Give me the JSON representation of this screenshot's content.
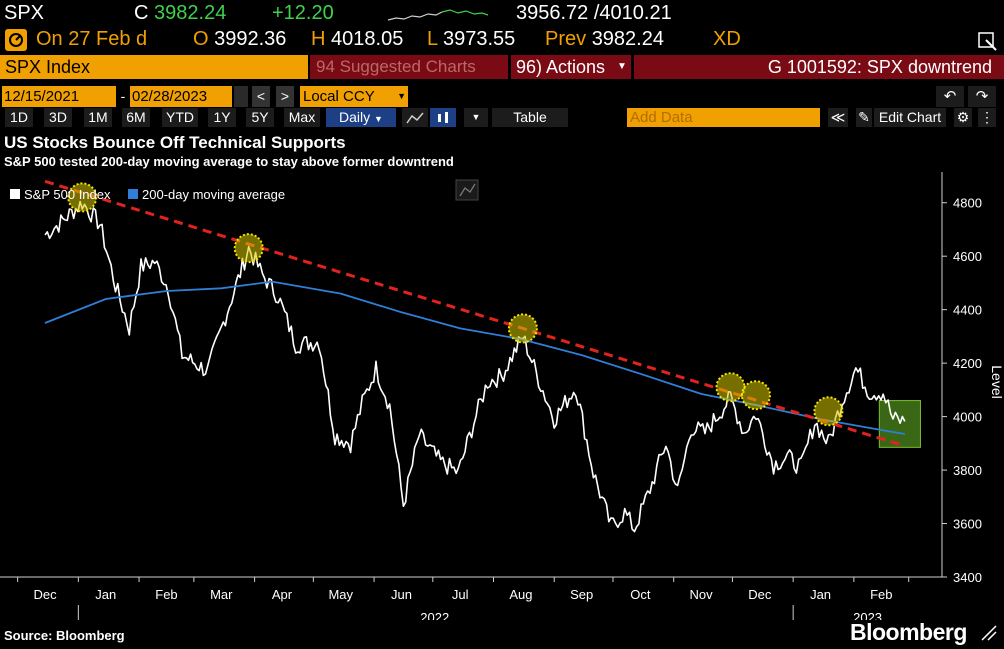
{
  "quote": {
    "ticker": "SPX",
    "close_prefix": "C",
    "close": "3982.24",
    "change": "+12.20",
    "range": "3956.72 /4010.21",
    "date_label": "On 27 Feb d",
    "open_prefix": "O",
    "open": "3992.36",
    "high_prefix": "H",
    "high": "4018.05",
    "low_prefix": "L",
    "low": "3973.55",
    "prev_label": "Prev",
    "prev": "3982.24",
    "xd": "XD"
  },
  "toolbar": {
    "security": "SPX Index",
    "suggested": "94 Suggested Charts",
    "actions": "96) Actions",
    "chart_id": "G 1001592: SPX downtrend",
    "start_date": "12/15/2021",
    "end_date": "02/28/2023",
    "currency": "Local CCY",
    "periods": [
      "1D",
      "3D",
      "1M",
      "6M",
      "YTD",
      "1Y",
      "5Y",
      "Max"
    ],
    "frequency": "Daily",
    "table_label": "Table",
    "add_data_placeholder": "Add Data",
    "edit_chart": "Edit Chart"
  },
  "colors": {
    "amber": "#f0a000",
    "price_line": "#ffffff",
    "ma_line": "#2f7fd8",
    "trend_line": "#e0231c",
    "highlight": "#d8c800",
    "box": "#4e8a1e"
  },
  "footer": {
    "source": "Source: Bloomberg",
    "logo": "Bloomberg"
  },
  "chart_data": {
    "type": "line",
    "title": "US Stocks Bounce Off Technical Supports",
    "subtitle": "S&P 500 tested 200-day moving average to stay above former downtrend",
    "ylabel": "Level",
    "ylim": [
      3400,
      4900
    ],
    "yticks": [
      3400,
      3600,
      3800,
      4000,
      4200,
      4400,
      4600,
      4800
    ],
    "xticks": [
      "Dec",
      "Jan",
      "Feb",
      "Mar",
      "Apr",
      "May",
      "Jun",
      "Jul",
      "Aug",
      "Sep",
      "Oct",
      "Nov",
      "Dec",
      "Jan",
      "Feb"
    ],
    "year_labels": [
      "2022",
      "2023"
    ],
    "legend": [
      "S&P 500 Index",
      "200-day moving average"
    ],
    "legend_position": "top-left",
    "grid": false,
    "series": [
      {
        "name": "S&P 500 Index",
        "x": [
          "2021-12-15",
          "2021-12-22",
          "2022-01-03",
          "2022-01-12",
          "2022-01-20",
          "2022-01-27",
          "2022-02-02",
          "2022-02-09",
          "2022-02-16",
          "2022-02-23",
          "2022-03-08",
          "2022-03-16",
          "2022-03-29",
          "2022-04-05",
          "2022-04-13",
          "2022-04-22",
          "2022-05-04",
          "2022-05-12",
          "2022-05-20",
          "2022-05-26",
          "2022-06-02",
          "2022-06-09",
          "2022-06-16",
          "2022-06-24",
          "2022-07-05",
          "2022-07-14",
          "2022-07-22",
          "2022-07-29",
          "2022-08-05",
          "2022-08-16",
          "2022-08-24",
          "2022-09-01",
          "2022-09-12",
          "2022-09-21",
          "2022-09-30",
          "2022-10-07",
          "2022-10-12",
          "2022-10-21",
          "2022-10-28",
          "2022-11-03",
          "2022-11-10",
          "2022-11-17",
          "2022-11-30",
          "2022-12-07",
          "2022-12-13",
          "2022-12-22",
          "2022-12-29",
          "2023-01-05",
          "2023-01-12",
          "2023-01-19",
          "2023-01-26",
          "2023-02-02",
          "2023-02-09",
          "2023-02-16",
          "2023-02-21",
          "2023-02-27"
        ],
        "values": [
          4680,
          4720,
          4800,
          4720,
          4490,
          4330,
          4560,
          4580,
          4480,
          4230,
          4170,
          4350,
          4630,
          4530,
          4450,
          4270,
          4280,
          3930,
          3900,
          4050,
          4180,
          4040,
          3670,
          3930,
          3830,
          3790,
          3980,
          4130,
          4150,
          4300,
          4140,
          3990,
          4110,
          3790,
          3590,
          3640,
          3580,
          3750,
          3900,
          3720,
          3960,
          3940,
          4070,
          3940,
          4010,
          3820,
          3850,
          3810,
          3980,
          3900,
          4060,
          4180,
          4090,
          4090,
          3990,
          3982
        ]
      },
      {
        "name": "200-day moving average",
        "x": [
          "2021-12-15",
          "2022-01-15",
          "2022-02-15",
          "2022-03-15",
          "2022-04-10",
          "2022-05-15",
          "2022-06-15",
          "2022-07-15",
          "2022-08-15",
          "2022-09-15",
          "2022-10-15",
          "2022-11-15",
          "2022-12-15",
          "2023-01-15",
          "2023-02-15",
          "2023-02-27"
        ],
        "values": [
          4350,
          4440,
          4470,
          4480,
          4505,
          4460,
          4390,
          4330,
          4290,
          4230,
          4160,
          4085,
          4040,
          3990,
          3950,
          3935
        ]
      },
      {
        "name": "Downtrend",
        "x": [
          "2021-12-15",
          "2023-02-27"
        ],
        "values": [
          4880,
          3890
        ]
      }
    ],
    "highlight_points": [
      {
        "x": "2022-01-03",
        "y": 4820
      },
      {
        "x": "2022-03-29",
        "y": 4630
      },
      {
        "x": "2022-08-16",
        "y": 4330
      },
      {
        "x": "2022-11-30",
        "y": 4110
      },
      {
        "x": "2022-12-13",
        "y": 4080
      },
      {
        "x": "2023-01-19",
        "y": 4020
      }
    ],
    "highlight_box": {
      "x": [
        "2023-02-14",
        "2023-03-07"
      ],
      "y": [
        3885,
        4060
      ]
    }
  }
}
